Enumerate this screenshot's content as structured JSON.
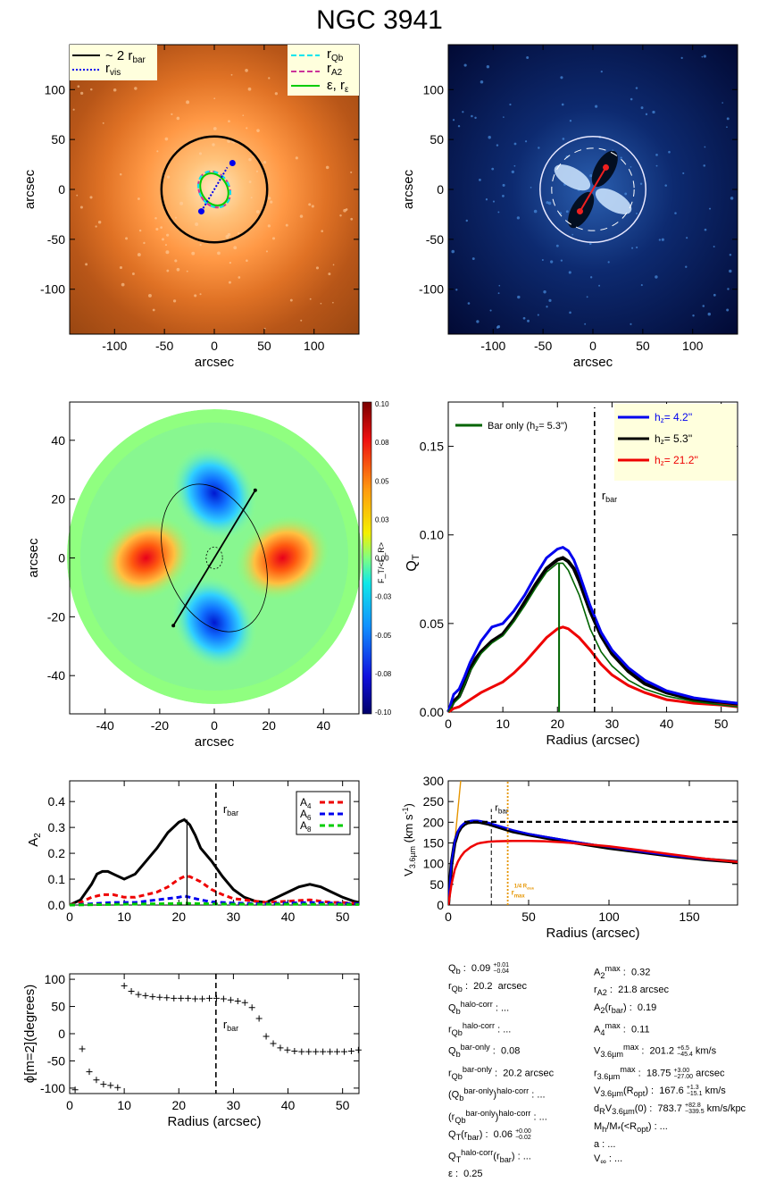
{
  "page": {
    "title": "NGC 3941"
  },
  "colors": {
    "black": "#000000",
    "blue": "#0000ee",
    "red": "#ee0000",
    "green": "#00cc00",
    "darkgreen": "#006400",
    "cyan": "#00e5ee",
    "magenta": "#cc3399",
    "orange": "#e69500",
    "yellow_bg": "#ffffdd"
  },
  "panels": {
    "image": {
      "ylabel": "arcsec",
      "xlabel": "arcsec",
      "xticks": [
        "-100",
        "-50",
        "0",
        "50",
        "100"
      ],
      "yticks": [
        "100",
        "50",
        "0",
        "-50",
        "-100"
      ],
      "legend_left": [
        "~ 2 r",
        "bar",
        "r",
        "vis"
      ],
      "legend_right": [
        "r",
        "Qb",
        "r",
        "A2",
        "ε, r",
        "ε"
      ]
    },
    "residual": {
      "ylabel": "arcsec",
      "xlabel": "arcsec",
      "xticks": [
        "-100",
        "-50",
        "0",
        "50",
        "100"
      ],
      "yticks": [
        "100",
        "50",
        "0",
        "-50",
        "-100"
      ]
    },
    "qmap": {
      "ylabel": "arcsec",
      "xlabel": "arcsec",
      "xticks": [
        "-40",
        "-20",
        "0",
        "20",
        "40"
      ],
      "yticks": [
        "40",
        "20",
        "0",
        "-20",
        "-40"
      ],
      "colorbar_ticks": [
        "0.10",
        "0.08",
        "0.05",
        "0.03",
        "0.00",
        "-0.03",
        "-0.05",
        "-0.08",
        "-0.10"
      ],
      "colorbar_label": "F_T/<F_R>"
    },
    "qr": {
      "ylabel": "Q",
      "ylabel_sub": "T",
      "xlabel": "Radius (arcsec)",
      "xticks": [
        "0",
        "10",
        "20",
        "30",
        "40",
        "50"
      ],
      "yticks": [
        "0.00",
        "0.05",
        "0.10",
        "0.15"
      ],
      "rbar": "r",
      "rbar_sub": "bar",
      "bar_only": "Bar only (h",
      "bar_only_sub": "z",
      "bar_only_val": "=  5.3\")",
      "legend": [
        {
          "label": "h",
          "sub": "z",
          "val": "=   4.2''",
          "color": "#0000ee"
        },
        {
          "label": "h",
          "sub": "z",
          "val": "=   5.3''",
          "color": "#000000"
        },
        {
          "label": "h",
          "sub": "z",
          "val": "=  21.2''",
          "color": "#ee0000"
        }
      ]
    },
    "a2": {
      "ylabel": "A",
      "ylabel_sub": "2",
      "xlabel": "",
      "xticks": [
        "0",
        "10",
        "20",
        "30",
        "40",
        "50"
      ],
      "yticks": [
        "0.0",
        "0.1",
        "0.2",
        "0.3",
        "0.4"
      ],
      "rbar": "r",
      "rbar_sub": "bar",
      "legend": [
        {
          "label": "A",
          "sub": "4"
        },
        {
          "label": "A",
          "sub": "6"
        },
        {
          "label": "A",
          "sub": "8"
        }
      ]
    },
    "vc": {
      "ylabel": "V",
      "ylabel_sub": "3.6µm",
      "ylabel_tail": " (km s",
      "ylabel_sup": "-1",
      "ylabel_end": ")",
      "xlabel": "Radius (arcsec)",
      "xticks": [
        "0",
        "50",
        "100",
        "150"
      ],
      "yticks": [
        "0",
        "50",
        "100",
        "150",
        "200",
        "250",
        "300"
      ],
      "rbar": "r",
      "rbar_sub": "bar",
      "rmax": "r",
      "rmax_sub": "max",
      "rmax_sup": "1/4 R",
      "rmax_sup_sub": "disk"
    },
    "phase": {
      "ylabel": "ϕ[m=2](degrees)",
      "xlabel": "Radius (arcsec)",
      "xticks": [
        "0",
        "10",
        "20",
        "30",
        "40",
        "50"
      ],
      "yticks": [
        "100",
        "50",
        "0",
        "-50",
        "-100"
      ],
      "rbar": "r",
      "rbar_sub": "bar"
    }
  },
  "info_left": [
    "Q_b :  0.09 +0.01 −0.04",
    "r_Qb :  20.2  arcsec",
    "Q_b^halo-corr : ...",
    "r_Qb^halo-corr : ...",
    "Q_b^bar-only :  0.08",
    "r_Qb^bar-only :  20.2 arcsec",
    "(Q_b^bar-only)^halo-corr : ...",
    "(r_Qb^bar-only)^halo-corr : ...",
    "Q_T(r_bar) :  0.06 +0.00 −0.02",
    "Q_T^halo-corr(r_bar) : ...",
    "ε :  0.25"
  ],
  "info_right": [
    "A_2^max :  0.32",
    "r_A2 :  21.8 arcsec",
    "A_2(r_bar) :  0.19",
    "A_4^max :  0.11",
    "V_3.6µm^max :  201.2 +6.5 −45.4 km/s",
    "r_3.6µm^max :  18.75 +3.00 −27.00 arcsec",
    "V_3.6µm(R_opt) :  167.6 +1.3 −15.1 km/s",
    "d_R V_3.6µm(0) :  783.7 +82.8 −339.5 km/s/kpc",
    "M_h/M_*(<R_opt) : ...",
    "a : ...",
    "V_∞ : ..."
  ],
  "chart_data": [
    {
      "type": "image",
      "name": "surface-brightness",
      "xlim": [
        -145,
        145
      ],
      "ylim": [
        -145,
        145
      ],
      "circle_2rbar_radius": 53,
      "ellipse_rQb_semi": [
        15,
        19
      ],
      "bar_pa_deg": -30
    },
    {
      "type": "image",
      "name": "residual",
      "xlim": [
        -145,
        145
      ],
      "ylim": [
        -145,
        145
      ],
      "circle_radius": 53
    },
    {
      "type": "heatmap",
      "name": "QT-map",
      "xlim": [
        -53,
        53
      ],
      "ylim": [
        -53,
        53
      ],
      "clim": [
        -0.1,
        0.1
      ]
    },
    {
      "type": "line",
      "name": "QT-profile",
      "xlim": [
        0,
        53
      ],
      "ylim": [
        0,
        0.175
      ],
      "rbar": 26.8,
      "series": [
        {
          "name": "hz = 4.2''",
          "x": [
            0,
            1,
            2,
            3,
            4,
            5,
            6,
            8,
            10,
            12,
            14,
            16,
            18,
            20,
            21,
            22,
            23,
            24,
            26,
            28,
            30,
            33,
            36,
            40,
            45,
            50,
            53
          ],
          "y": [
            0,
            0.01,
            0.013,
            0.02,
            0.028,
            0.034,
            0.04,
            0.048,
            0.05,
            0.057,
            0.066,
            0.077,
            0.087,
            0.092,
            0.093,
            0.091,
            0.086,
            0.078,
            0.06,
            0.045,
            0.035,
            0.025,
            0.018,
            0.012,
            0.008,
            0.006,
            0.005
          ]
        },
        {
          "name": "hz = 5.3''",
          "x": [
            0,
            1,
            2,
            3,
            4,
            5,
            6,
            8,
            10,
            12,
            14,
            16,
            18,
            20,
            21,
            22,
            23,
            24,
            26,
            28,
            30,
            33,
            36,
            40,
            45,
            50,
            53
          ],
          "y": [
            0,
            0.006,
            0.009,
            0.016,
            0.024,
            0.03,
            0.034,
            0.04,
            0.044,
            0.052,
            0.062,
            0.072,
            0.081,
            0.086,
            0.087,
            0.085,
            0.081,
            0.074,
            0.057,
            0.043,
            0.033,
            0.023,
            0.016,
            0.011,
            0.007,
            0.005,
            0.004
          ]
        },
        {
          "name": "hz = 21.2''",
          "x": [
            0,
            1,
            2,
            4,
            6,
            8,
            10,
            12,
            14,
            16,
            18,
            20,
            21,
            22,
            24,
            26,
            28,
            30,
            33,
            36,
            40,
            45,
            50,
            53
          ],
          "y": [
            0,
            0.002,
            0.003,
            0.007,
            0.011,
            0.014,
            0.017,
            0.022,
            0.028,
            0.035,
            0.042,
            0.047,
            0.048,
            0.047,
            0.042,
            0.035,
            0.027,
            0.021,
            0.015,
            0.011,
            0.007,
            0.005,
            0.004,
            0.003
          ]
        },
        {
          "name": "Bar only (hz = 5.3'')",
          "x": [
            0,
            1,
            2,
            4,
            6,
            8,
            10,
            12,
            14,
            16,
            18,
            20,
            21,
            22,
            24,
            26,
            28,
            30,
            33,
            36,
            40,
            45,
            50,
            53
          ],
          "y": [
            0,
            0.005,
            0.008,
            0.023,
            0.033,
            0.039,
            0.043,
            0.051,
            0.06,
            0.07,
            0.079,
            0.084,
            0.084,
            0.08,
            0.066,
            0.047,
            0.034,
            0.026,
            0.018,
            0.013,
            0.009,
            0.006,
            0.004,
            0.003
          ]
        }
      ]
    },
    {
      "type": "line",
      "name": "Fourier-amplitudes",
      "xlim": [
        0,
        53
      ],
      "ylim": [
        0,
        0.48
      ],
      "rbar": 26.8,
      "series": [
        {
          "name": "A2",
          "x": [
            0,
            2,
            4,
            5,
            6,
            7,
            8,
            10,
            12,
            14,
            16,
            18,
            20,
            21,
            22,
            23,
            24,
            26,
            28,
            30,
            32,
            34,
            36,
            38,
            40,
            42,
            44,
            46,
            48,
            50,
            52,
            53
          ],
          "y": [
            0,
            0.02,
            0.08,
            0.12,
            0.13,
            0.13,
            0.12,
            0.1,
            0.12,
            0.17,
            0.22,
            0.28,
            0.32,
            0.33,
            0.31,
            0.27,
            0.22,
            0.17,
            0.11,
            0.06,
            0.03,
            0.015,
            0.01,
            0.03,
            0.05,
            0.07,
            0.08,
            0.07,
            0.05,
            0.03,
            0.015,
            0.01
          ]
        },
        {
          "name": "A4",
          "x": [
            0,
            2,
            4,
            6,
            8,
            10,
            12,
            14,
            16,
            18,
            20,
            21,
            22,
            24,
            26,
            28,
            30,
            32,
            34,
            36,
            40,
            44,
            46,
            48,
            50,
            53
          ],
          "y": [
            0,
            0.01,
            0.03,
            0.04,
            0.04,
            0.03,
            0.03,
            0.04,
            0.05,
            0.07,
            0.1,
            0.11,
            0.11,
            0.09,
            0.06,
            0.04,
            0.025,
            0.02,
            0.015,
            0.01,
            0.015,
            0.02,
            0.015,
            0.01,
            0.01,
            0.005
          ]
        },
        {
          "name": "A6",
          "x": [
            0,
            4,
            8,
            12,
            16,
            18,
            20,
            21,
            22,
            24,
            26,
            30,
            36,
            40,
            44,
            48,
            53
          ],
          "y": [
            0,
            0.005,
            0.01,
            0.01,
            0.02,
            0.025,
            0.03,
            0.035,
            0.03,
            0.02,
            0.012,
            0.008,
            0.005,
            0.008,
            0.01,
            0.008,
            0.005
          ]
        },
        {
          "name": "A8",
          "x": [
            0,
            10,
            20,
            21,
            22,
            30,
            40,
            53
          ],
          "y": [
            0,
            0.003,
            0.006,
            0.008,
            0.006,
            0.003,
            0.003,
            0.002
          ]
        }
      ],
      "legend_labels": [
        "A4",
        "A6",
        "A8"
      ]
    },
    {
      "type": "line",
      "name": "rotation-curve",
      "xlim": [
        0,
        180
      ],
      "ylim": [
        0,
        300
      ],
      "rbar": 26.8,
      "rmax": 37,
      "series": [
        {
          "name": "total",
          "x": [
            0,
            2,
            4,
            6,
            8,
            10,
            12,
            15,
            18,
            20,
            25,
            30,
            40,
            50,
            60,
            80,
            100,
            120,
            140,
            160,
            180
          ],
          "y": [
            0,
            100,
            150,
            175,
            188,
            195,
            199,
            201,
            201,
            200,
            196,
            190,
            178,
            170,
            163,
            150,
            138,
            128,
            118,
            110,
            104
          ]
        },
        {
          "name": "hz 4.2",
          "x": [
            0,
            2,
            4,
            6,
            8,
            10,
            12,
            15,
            18,
            20,
            25,
            30,
            40,
            50,
            60,
            80,
            100,
            120,
            140,
            160,
            180
          ],
          "y": [
            0,
            103,
            153,
            178,
            191,
            198,
            202,
            204,
            204,
            203,
            199,
            193,
            181,
            172,
            165,
            152,
            140,
            129,
            119,
            111,
            105
          ]
        },
        {
          "name": "hz 21.2",
          "x": [
            0,
            2,
            4,
            6,
            8,
            10,
            14,
            18,
            20,
            25,
            30,
            40,
            50,
            60,
            70,
            80,
            100,
            120,
            140,
            160,
            180
          ],
          "y": [
            0,
            50,
            85,
            105,
            118,
            128,
            140,
            148,
            150,
            153,
            154,
            155,
            155,
            154,
            152,
            149,
            142,
            132,
            122,
            112,
            104
          ]
        },
        {
          "name": "flat",
          "x": [
            10,
            180
          ],
          "y": [
            201,
            201
          ]
        },
        {
          "name": "steep",
          "x": [
            0,
            2,
            4,
            6,
            8
          ],
          "y": [
            0,
            70,
            150,
            230,
            310
          ]
        }
      ]
    },
    {
      "type": "scatter",
      "name": "bar-phase",
      "xlim": [
        0,
        53
      ],
      "ylim": [
        -110,
        110
      ],
      "rbar": 26.8,
      "x": [
        1,
        2.3,
        3.6,
        4.9,
        6.2,
        7.5,
        8.8,
        10,
        11.3,
        12.6,
        13.9,
        15.2,
        16.5,
        17.8,
        19.1,
        20.4,
        21.7,
        23,
        24.3,
        25.6,
        26.9,
        28.2,
        29.5,
        30.8,
        32.1,
        33.4,
        34.7,
        36,
        37.3,
        38.6,
        39.9,
        41.2,
        42.5,
        43.8,
        45.1,
        46.4,
        47.7,
        49,
        50.3,
        51.6,
        52.9
      ],
      "y": [
        -103,
        -28,
        -70,
        -85,
        -93,
        -95,
        -99,
        88,
        78,
        72,
        70,
        68,
        67,
        66,
        65,
        65,
        65,
        64,
        64,
        65,
        65,
        64,
        62,
        60,
        57,
        48,
        28,
        -5,
        -18,
        -26,
        -30,
        -32,
        -33,
        -33,
        -33,
        -33,
        -33,
        -33,
        -33,
        -32,
        -30
      ]
    }
  ]
}
